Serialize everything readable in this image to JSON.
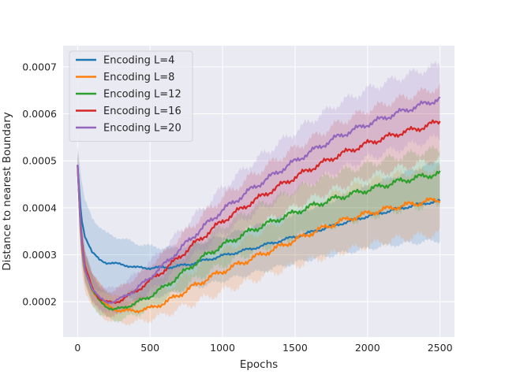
{
  "chart_data": {
    "type": "line",
    "title": "",
    "xlabel": "Epochs",
    "ylabel": "Distance to nearest Boundary",
    "xlim": [
      -100,
      2600
    ],
    "ylim": [
      0.000125,
      0.000745
    ],
    "xticks": [
      0,
      500,
      1000,
      1500,
      2000,
      2500
    ],
    "xtick_labels": [
      "0",
      "500",
      "1000",
      "1500",
      "2000",
      "2500"
    ],
    "yticks": [
      0.0002,
      0.0003,
      0.0004,
      0.0005,
      0.0006,
      0.0007
    ],
    "ytick_labels": [
      "0.0002",
      "0.0003",
      "0.0004",
      "0.0005",
      "0.0006",
      "0.0007"
    ],
    "grid": true,
    "legend_position": "top-left",
    "shaded_band": true,
    "series": [
      {
        "name": "Encoding L=4",
        "color": "#1f77b4",
        "x": [
          0,
          25,
          50,
          100,
          150,
          200,
          300,
          400,
          500,
          600,
          700,
          800,
          900,
          1000,
          1200,
          1400,
          1600,
          1800,
          2000,
          2200,
          2400,
          2500
        ],
        "mean": [
          0.00049,
          0.00038,
          0.00034,
          0.000305,
          0.00029,
          0.000283,
          0.00028,
          0.000273,
          0.000272,
          0.000273,
          0.000276,
          0.000282,
          0.00029,
          0.000298,
          0.000313,
          0.00033,
          0.000347,
          0.000365,
          0.000382,
          0.000397,
          0.00041,
          0.000414
        ],
        "lower": [
          0.000475,
          0.00029,
          0.00026,
          0.000235,
          0.000222,
          0.000215,
          0.00021,
          0.000205,
          0.000207,
          0.000215,
          0.000222,
          0.00023,
          0.000237,
          0.000245,
          0.00026,
          0.000275,
          0.00029,
          0.000302,
          0.000313,
          0.000322,
          0.000328,
          0.00033
        ],
        "upper": [
          0.000535,
          0.00046,
          0.000415,
          0.00038,
          0.00036,
          0.000345,
          0.000335,
          0.000325,
          0.000318,
          0.000315,
          0.000316,
          0.000322,
          0.00033,
          0.00034,
          0.000358,
          0.000378,
          0.000398,
          0.00042,
          0.000445,
          0.000468,
          0.00049,
          0.0005
        ]
      },
      {
        "name": "Encoding L=8",
        "color": "#ff7f0e",
        "x": [
          0,
          25,
          50,
          100,
          150,
          200,
          250,
          300,
          400,
          500,
          600,
          700,
          800,
          900,
          1000,
          1200,
          1400,
          1600,
          1800,
          2000,
          2200,
          2400,
          2500
        ],
        "mean": [
          0.00049,
          0.00032,
          0.000265,
          0.000225,
          0.000205,
          0.000192,
          0.000185,
          0.000181,
          0.000181,
          0.000186,
          0.000198,
          0.000215,
          0.000233,
          0.00025,
          0.000265,
          0.000292,
          0.000318,
          0.000345,
          0.00037,
          0.000388,
          0.000402,
          0.000413,
          0.000418
        ],
        "lower": [
          0.00046,
          0.000275,
          0.000225,
          0.00019,
          0.000172,
          0.000163,
          0.000157,
          0.000155,
          0.000156,
          0.000162,
          0.000172,
          0.000185,
          0.000197,
          0.00021,
          0.000222,
          0.000245,
          0.000267,
          0.000287,
          0.000305,
          0.00032,
          0.000333,
          0.000342,
          0.000345
        ],
        "upper": [
          0.00052,
          0.000365,
          0.000305,
          0.00026,
          0.000238,
          0.000222,
          0.000213,
          0.000207,
          0.000206,
          0.00021,
          0.000225,
          0.000245,
          0.000268,
          0.00029,
          0.000308,
          0.00034,
          0.00037,
          0.000402,
          0.000435,
          0.000456,
          0.00047,
          0.00048,
          0.000485
        ]
      },
      {
        "name": "Encoding L=12",
        "color": "#2ca02c",
        "x": [
          0,
          25,
          50,
          100,
          150,
          200,
          250,
          300,
          400,
          500,
          600,
          700,
          800,
          900,
          1000,
          1200,
          1400,
          1600,
          1800,
          2000,
          2200,
          2400,
          2500
        ],
        "mean": [
          0.00049,
          0.00033,
          0.00027,
          0.000225,
          0.000202,
          0.00019,
          0.000183,
          0.000186,
          0.000197,
          0.000212,
          0.000232,
          0.000255,
          0.00028,
          0.000302,
          0.00032,
          0.000352,
          0.000378,
          0.000402,
          0.000422,
          0.000438,
          0.000455,
          0.000468,
          0.000473
        ],
        "lower": [
          0.000465,
          0.00029,
          0.000235,
          0.000195,
          0.000175,
          0.000165,
          0.00016,
          0.000162,
          0.000172,
          0.000186,
          0.000204,
          0.000225,
          0.000245,
          0.000263,
          0.000278,
          0.000305,
          0.000328,
          0.000348,
          0.000367,
          0.00038,
          0.000395,
          0.000405,
          0.00041
        ],
        "upper": [
          0.000515,
          0.000375,
          0.000305,
          0.000258,
          0.000233,
          0.000218,
          0.000208,
          0.000212,
          0.000225,
          0.00024,
          0.000262,
          0.000288,
          0.000315,
          0.00034,
          0.00036,
          0.000398,
          0.000425,
          0.000452,
          0.000475,
          0.000492,
          0.000508,
          0.00052,
          0.000525
        ]
      },
      {
        "name": "Encoding L=16",
        "color": "#d62728",
        "x": [
          0,
          25,
          50,
          100,
          150,
          200,
          250,
          300,
          400,
          500,
          600,
          700,
          800,
          900,
          1000,
          1200,
          1400,
          1600,
          1800,
          2000,
          2200,
          2400,
          2500
        ],
        "mean": [
          0.00049,
          0.00034,
          0.000275,
          0.00023,
          0.000208,
          0.000199,
          0.000198,
          0.000204,
          0.000222,
          0.000245,
          0.000268,
          0.000295,
          0.000322,
          0.000347,
          0.000372,
          0.000412,
          0.000448,
          0.000482,
          0.000512,
          0.000537,
          0.000557,
          0.000573,
          0.000585
        ],
        "lower": [
          0.00046,
          0.0003,
          0.000245,
          0.0002,
          0.000182,
          0.000172,
          0.00017,
          0.000175,
          0.000192,
          0.000212,
          0.000232,
          0.000255,
          0.000278,
          0.0003,
          0.00032,
          0.000355,
          0.000387,
          0.000417,
          0.000443,
          0.000465,
          0.000483,
          0.000497,
          0.000505
        ],
        "upper": [
          0.00052,
          0.00038,
          0.00031,
          0.000262,
          0.000236,
          0.000225,
          0.000224,
          0.000232,
          0.000252,
          0.000278,
          0.000305,
          0.000335,
          0.000365,
          0.000395,
          0.000422,
          0.000468,
          0.000508,
          0.000545,
          0.00058,
          0.000608,
          0.00063,
          0.000648,
          0.000658
        ]
      },
      {
        "name": "Encoding L=20",
        "color": "#9467bd",
        "x": [
          0,
          25,
          50,
          100,
          150,
          200,
          250,
          300,
          400,
          500,
          600,
          700,
          800,
          900,
          1000,
          1200,
          1400,
          1600,
          1800,
          2000,
          2200,
          2400,
          2500
        ],
        "mean": [
          0.00049,
          0.00033,
          0.00027,
          0.000228,
          0.000208,
          0.0002,
          0.0002,
          0.000207,
          0.000226,
          0.000252,
          0.00028,
          0.00031,
          0.00034,
          0.000368,
          0.000395,
          0.00044,
          0.00048,
          0.000518,
          0.000552,
          0.000578,
          0.000601,
          0.000622,
          0.000632
        ],
        "lower": [
          0.00046,
          0.0003,
          0.000245,
          0.000203,
          0.000185,
          0.000176,
          0.000175,
          0.00018,
          0.000198,
          0.000222,
          0.000245,
          0.000272,
          0.000298,
          0.000322,
          0.000345,
          0.000385,
          0.00042,
          0.000452,
          0.00048,
          0.000505,
          0.000525,
          0.000542,
          0.00055
        ],
        "upper": [
          0.00052,
          0.000375,
          0.00031,
          0.00026,
          0.000238,
          0.000228,
          0.000228,
          0.000235,
          0.000258,
          0.000285,
          0.000315,
          0.000348,
          0.00038,
          0.00041,
          0.000442,
          0.000495,
          0.00054,
          0.000583,
          0.000622,
          0.000652,
          0.000675,
          0.000695,
          0.000705
        ]
      }
    ]
  }
}
